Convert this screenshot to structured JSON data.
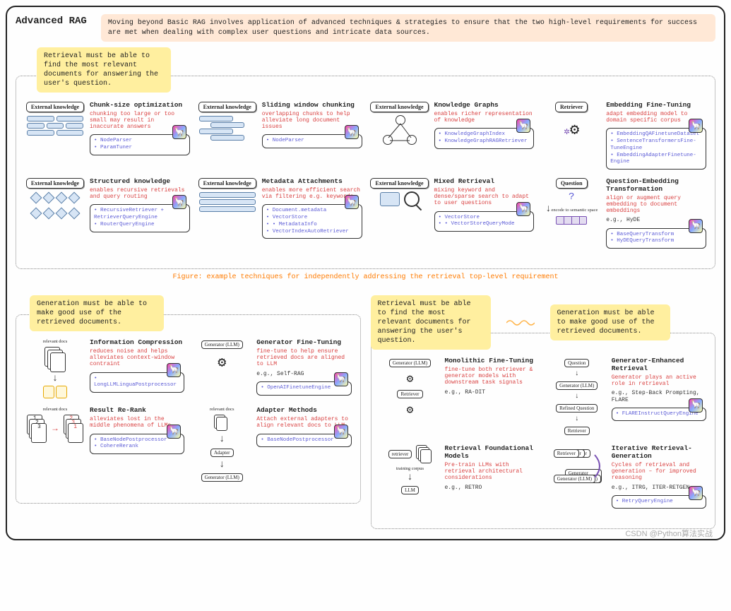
{
  "title": "Advanced RAG",
  "intro": "Moving beyond Basic RAG involves application of advanced techniques & strategies to ensure that the two high-level requirements for success are met when dealing with complex user questions and intricate data sources.",
  "requirements": {
    "retrieval": "Retrieval must be able to find the most relevant documents for answering the user's question.",
    "generation": "Generation must be able to make good use of the retrieved documents."
  },
  "captions": {
    "retrieval_figure": "Figure: example techniques for independently addressing the retrieval top-level requirement"
  },
  "colors": {
    "orange_text": "#ff7b00",
    "red_text": "#d94141",
    "tool_text": "#5b5bd6",
    "note_yellow": "#ffef9f",
    "intro_peach": "#ffe8d6",
    "chunk_fill": "#d7e5f5",
    "chunk_border": "#5a7fa8"
  },
  "retrieval_cards": [
    {
      "diagram_label": "External knowledge",
      "title": "Chunk-size optimization",
      "desc": "chunking too large or too small may result in inaccurate answers",
      "tools": [
        "NodeParser",
        "ParamTuner"
      ],
      "style": "chunks-even"
    },
    {
      "diagram_label": "External knowledge",
      "title": "Sliding window chunking",
      "desc": "overlapping chunks to help alleviate long document issues",
      "tools": [
        "NodeParser"
      ],
      "style": "chunks-overlap"
    },
    {
      "diagram_label": "External knowledge",
      "title": "Knowledge Graphs",
      "desc": "enables richer representation of knowledge",
      "tools": [
        "KnowledgeGraphIndex",
        "KnowledgeGraphRAGRetriever"
      ],
      "style": "graph"
    },
    {
      "diagram_label": "Retriever",
      "title": "Embedding Fine-Tuning",
      "desc": "adapt embedding model to domain specific corpus",
      "tools": [
        "EmbeddingQAFinetuneDataset",
        "SentenceTransformersFine-TuneEngine",
        "EmbeddingAdapterFinetune-Engine"
      ],
      "style": "retriever-brain"
    },
    {
      "diagram_label": "External knowledge",
      "title": "Structured knowledge",
      "desc": "enables recursive retrievals and query routing",
      "tools": [
        "RecursiveRetriever + RetrieverQueryEngine",
        "RouterQueryEngine"
      ],
      "style": "diamonds"
    },
    {
      "diagram_label": "External knowledge",
      "title": "Metadata Attachments",
      "desc": "enables more efficient search via filtering e.g. keywords",
      "tools": [
        "Document.metadata",
        "VectorStore",
        "  • MetadataInfo",
        "VectorIndexAutoRetriever"
      ],
      "style": "chunks-metadata"
    },
    {
      "diagram_label": "External knowledge",
      "title": "Mixed Retrieval",
      "desc": "mixing keyword and dense/sparse search to adapt to user questions",
      "tools": [
        "VectorStore",
        "  • VectorStoreQueryMode"
      ],
      "style": "magnify"
    },
    {
      "diagram_label": "Question",
      "title": "Question-Embedding Transformation",
      "desc": "align or augment query embedding to document embeddings",
      "extra": "e.g., HyDE",
      "tools": [
        "BaseQueryTransform",
        "HyDEQueryTransform"
      ],
      "style": "question-encode"
    }
  ],
  "gen_cards": [
    {
      "diagram_label": "relevant docs",
      "title": "Information Compression",
      "desc": "reduces noise and helps alleviates context-window contraint",
      "tools": [
        "LongLLMLinguaPostprocessor"
      ],
      "style": "docs-compress"
    },
    {
      "diagram_label": "Generator (LLM)",
      "title": "Generator Fine-Tuning",
      "desc": "fine-tune to help ensure retrieved docs are aligned to LLM",
      "extra": "e.g., Self-RAG",
      "tools": [
        "OpenAIFinetuneEngine"
      ],
      "style": "gen-brain"
    },
    {
      "diagram_label": "relevant docs",
      "title": "Result Re-Rank",
      "desc": "alleviates lost in the middle phenomena of LLMs",
      "tools": [
        "BaseNodePostprocessor",
        "CohereRerank"
      ],
      "style": "rerank"
    },
    {
      "diagram_label": "relevant docs",
      "title": "Adapter Methods",
      "desc": "Attach external adapters to align relevant docs to LLM",
      "tools": [
        "BaseNodePostprocessor"
      ],
      "style": "adapter"
    }
  ],
  "both_cards": [
    {
      "labels": [
        "Generator (LLM)",
        "Retriever"
      ],
      "title": "Monolithic Fine-Tuning",
      "desc": "fine-tune both retriever & generator models with downstream task signals",
      "extra": "e.g., RA-DIT",
      "tools": [],
      "style": "mono"
    },
    {
      "labels": [
        "Question",
        "Generator (LLM)",
        "Refined Question",
        "Retriever"
      ],
      "title": "Generator-Enhanced Retrieval",
      "desc": "Generator plays an active role in retrieval",
      "extra": "e.g., Step-Back Prompting, FLARE",
      "tools": [
        "FLAREInstructQueryEngine"
      ],
      "style": "ger"
    },
    {
      "labels": [
        "retriever",
        "training corpus",
        "LLM"
      ],
      "title": "Retrieval Foundational Models",
      "desc": "Pre-train LLMs with retrieval architectural considerations",
      "extra": "e.g., RETRO",
      "tools": [],
      "style": "foundation"
    },
    {
      "labels": [
        "Retriever",
        "Generator (LLM)"
      ],
      "title": "Iterative Retrieval-Generation",
      "desc": "Cycles of retrieval and generation – for improved reasoning",
      "extra": "e.g., ITRG, ITER-RETGEN",
      "tools": [
        "RetryQueryEngine"
      ],
      "style": "iterative"
    }
  ],
  "watermark": "CSDN @Python算法实战"
}
